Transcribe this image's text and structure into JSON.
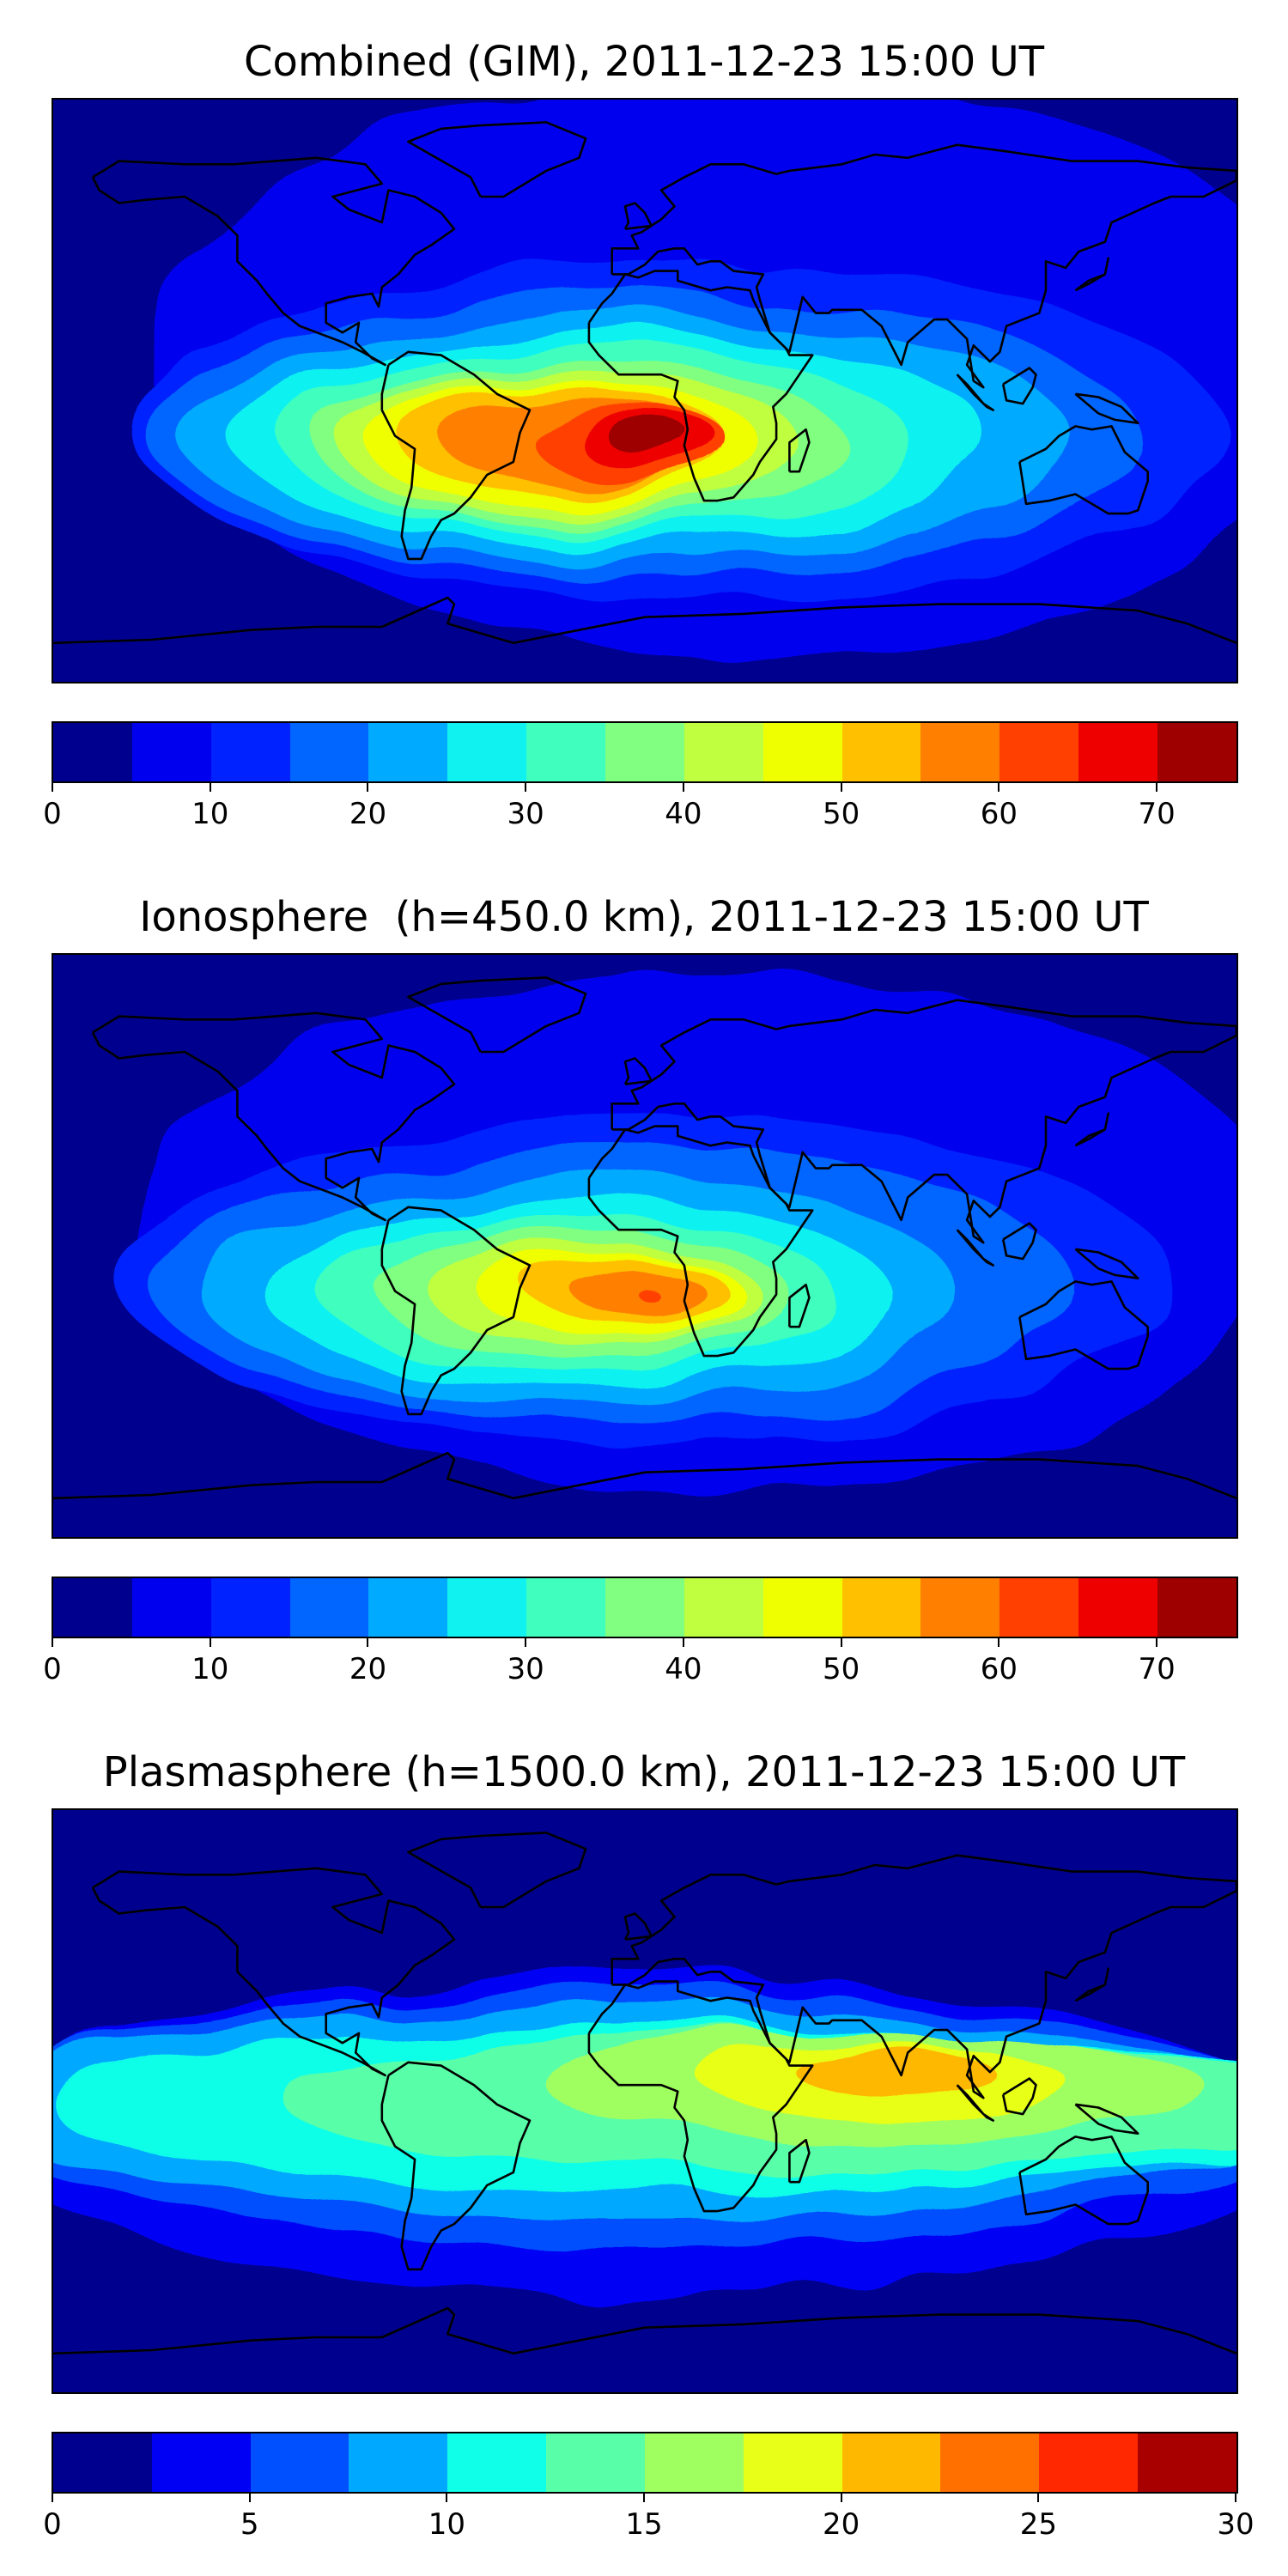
{
  "panels": [
    {
      "title": "Combined (GIM), 2011-12-23 15:00 UT",
      "colorbar": {
        "colors": [
          "#00008f",
          "#0000ee",
          "#0022ff",
          "#0066ff",
          "#00aaff",
          "#0ff2f0",
          "#40ffbe",
          "#80ff80",
          "#bfff40",
          "#f0ff00",
          "#ffc000",
          "#ff8000",
          "#ff4000",
          "#ee0000",
          "#9e0000"
        ],
        "min": 0,
        "max": 75,
        "ticks": [
          "0",
          "10",
          "20",
          "30",
          "40",
          "50",
          "60",
          "70"
        ]
      },
      "bands": [
        {
          "level": 0,
          "lat": 8,
          "lon": 30,
          "rx": 180,
          "ry": 90
        },
        {
          "level": 1,
          "lat": -12,
          "lon": 10,
          "rx": 165,
          "ry": 52
        },
        {
          "level": 2,
          "lat": -14,
          "lon": 0,
          "rx": 150,
          "ry": 44
        },
        {
          "level": 3,
          "lat": -15,
          "lon": -5,
          "rx": 135,
          "ry": 38
        },
        {
          "level": 4,
          "lat": -15,
          "lon": -10,
          "rx": 115,
          "ry": 33
        },
        {
          "level": 5,
          "lat": -15,
          "lon": -15,
          "rx": 95,
          "ry": 29
        },
        {
          "level": 6,
          "lat": -16,
          "lon": -20,
          "rx": 80,
          "ry": 25
        },
        {
          "level": 7,
          "lat": -16,
          "lon": -23,
          "rx": 70,
          "ry": 22
        },
        {
          "level": 8,
          "lat": -16,
          "lon": -25,
          "rx": 60,
          "ry": 19
        },
        {
          "level": 9,
          "lat": -15,
          "lon": -25,
          "rx": 50,
          "ry": 16
        },
        {
          "level": 10,
          "lat": -15,
          "lon": -20,
          "rx": 42,
          "ry": 13
        },
        {
          "level": 11,
          "lat": -15,
          "lon": -5,
          "rx": 30,
          "ry": 11
        },
        {
          "level": 12,
          "lat": -14,
          "lon": 0,
          "rx": 22,
          "ry": 8
        },
        {
          "level": 13,
          "lat": -13,
          "lon": 0,
          "rx": 13,
          "ry": 5
        }
      ]
    },
    {
      "title": "Ionosphere  (h=450.0 km), 2011-12-23 15:00 UT",
      "colorbar": {
        "colors": [
          "#00008f",
          "#0000ee",
          "#0022ff",
          "#0066ff",
          "#00aaff",
          "#0ff2f0",
          "#40ffbe",
          "#80ff80",
          "#bfff40",
          "#f0ff00",
          "#ffc000",
          "#ff8000",
          "#ff4000",
          "#ee0000",
          "#9e0000"
        ],
        "min": 0,
        "max": 75,
        "ticks": [
          "0",
          "10",
          "20",
          "30",
          "40",
          "50",
          "60",
          "70"
        ]
      },
      "bands": [
        {
          "level": 0,
          "lat": 5,
          "lon": 20,
          "rx": 175,
          "ry": 80
        },
        {
          "level": 1,
          "lat": -10,
          "lon": 0,
          "rx": 160,
          "ry": 50
        },
        {
          "level": 2,
          "lat": -12,
          "lon": -10,
          "rx": 140,
          "ry": 42
        },
        {
          "level": 3,
          "lat": -14,
          "lon": -20,
          "rx": 115,
          "ry": 35
        },
        {
          "level": 4,
          "lat": -15,
          "lon": -20,
          "rx": 95,
          "ry": 29
        },
        {
          "level": 5,
          "lat": -15,
          "lon": -20,
          "rx": 78,
          "ry": 24
        },
        {
          "level": 6,
          "lat": -15,
          "lon": -18,
          "rx": 62,
          "ry": 20
        },
        {
          "level": 7,
          "lat": -15,
          "lon": -15,
          "rx": 50,
          "ry": 16
        },
        {
          "level": 8,
          "lat": -15,
          "lon": -10,
          "rx": 40,
          "ry": 13
        },
        {
          "level": 9,
          "lat": -14,
          "lon": -5,
          "rx": 30,
          "ry": 10
        },
        {
          "level": 10,
          "lat": -14,
          "lon": -2,
          "rx": 20,
          "ry": 7
        },
        {
          "level": 11,
          "lat": -14,
          "lon": 0,
          "rx": 3,
          "ry": 2
        }
      ]
    },
    {
      "title": "Plasmasphere (h=1500.0 km), 2011-12-23 15:00 UT",
      "colorbar": {
        "colors": [
          "#00008f",
          "#0000f5",
          "#0050ff",
          "#00a8ff",
          "#10ffe8",
          "#58ffa8",
          "#a0ff60",
          "#e8ff18",
          "#ffb800",
          "#ff7000",
          "#ff2800",
          "#a80000"
        ],
        "min": 0,
        "max": 30,
        "ticks": [
          "0",
          "5",
          "10",
          "15",
          "20",
          "25",
          "30"
        ]
      },
      "bands": [
        {
          "level": 0,
          "lat": -10,
          "lon": 0,
          "rx": 200,
          "ry": 50
        },
        {
          "level": 1,
          "lat": -5,
          "lon": 0,
          "rx": 200,
          "ry": 40
        },
        {
          "level": 2,
          "lat": -3,
          "lon": 0,
          "rx": 200,
          "ry": 33
        },
        {
          "level": 3,
          "lat": -2,
          "lon": 20,
          "rx": 200,
          "ry": 26
        },
        {
          "level": 4,
          "lat": 0,
          "lon": 50,
          "rx": 160,
          "ry": 22
        },
        {
          "level": 5,
          "lat": 5,
          "lon": 70,
          "rx": 100,
          "ry": 18
        },
        {
          "level": 6,
          "lat": 7,
          "lon": 72,
          "rx": 55,
          "ry": 13
        },
        {
          "level": 7,
          "lat": 10,
          "lon": 75,
          "rx": 30,
          "ry": 8
        }
      ]
    }
  ]
}
